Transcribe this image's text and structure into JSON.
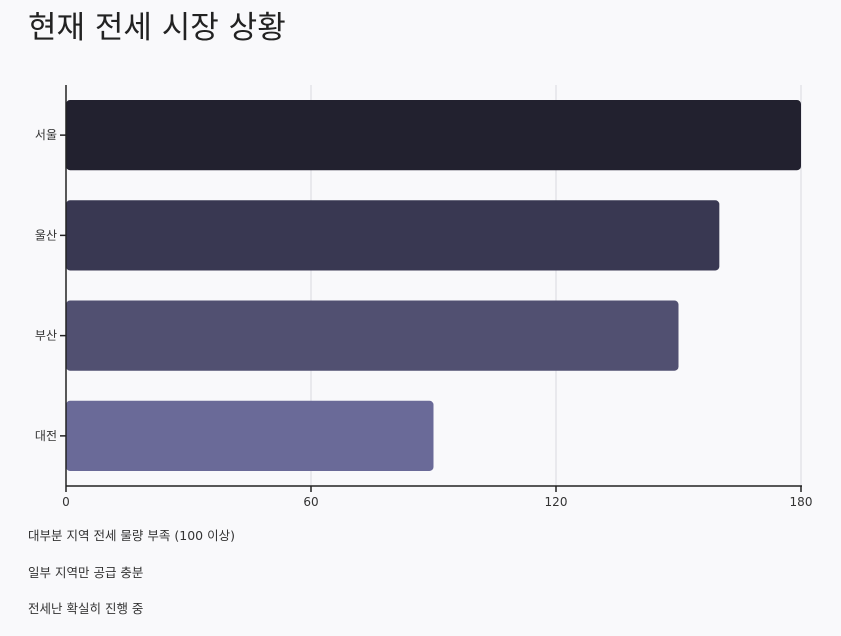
{
  "title": "현재 전세 시장 상황",
  "chart_data": {
    "type": "bar",
    "orientation": "horizontal",
    "title": "현재 전세 시장 상황",
    "categories": [
      "서울",
      "울산",
      "부산",
      "대전"
    ],
    "values": [
      180,
      160,
      150,
      90
    ],
    "xlim": [
      0,
      180
    ],
    "xticks": [
      0,
      60,
      120,
      180
    ],
    "xlabel": "",
    "ylabel": "",
    "grid": "vertical",
    "colors": [
      "#22212f",
      "#393852",
      "#515071",
      "#6a6a98"
    ]
  },
  "notes": [
    "대부분 지역 전세 물량 부족 (100 이상)",
    "일부 지역만 공급 충분",
    "전세난 확실히 진행 중"
  ]
}
